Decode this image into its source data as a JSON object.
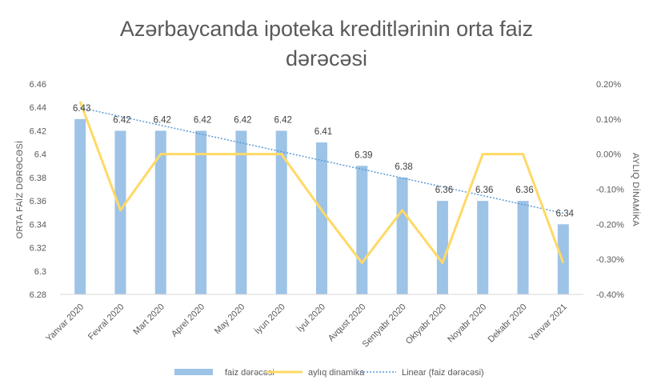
{
  "chart_data": {
    "type": "bar",
    "title_lines": [
      "Azərbaycanda ipoteka kreditlərinin orta faiz",
      "dərəcəsi"
    ],
    "categories": [
      "Yanvar 2020",
      "Fevral 2020",
      "Mart 2020",
      "Aprel 2020",
      "May 2020",
      "İyun 2020",
      "İyul 2020",
      "Avqust 2020",
      "Sentyabr 2020",
      "Oktyabr 2020",
      "Noyabr 2020",
      "Dekabr 2020",
      "Yanvar 2021"
    ],
    "series": [
      {
        "name": "faiz dərəcəsi",
        "type": "bar",
        "axis": "left",
        "color": "#9dc3e6",
        "values": [
          6.43,
          6.42,
          6.42,
          6.42,
          6.42,
          6.42,
          6.41,
          6.39,
          6.38,
          6.36,
          6.36,
          6.36,
          6.34
        ],
        "labels": [
          "6.43",
          "6.42",
          "6.42",
          "6.42",
          "6.42",
          "6.42",
          "6.41",
          "6.39",
          "6.38",
          "6.36",
          "6.36",
          "6.36",
          "6.34"
        ]
      },
      {
        "name": "aylıq dinamika",
        "type": "line",
        "axis": "right",
        "color": "#ffd966",
        "values": [
          0.15,
          -0.16,
          0.0,
          0.0,
          0.0,
          0.0,
          -0.16,
          -0.31,
          -0.16,
          -0.31,
          0.0,
          0.0,
          -0.31
        ]
      },
      {
        "name": "Linear (faiz dərəcəsi)",
        "type": "trendline",
        "axis": "left",
        "color": "#5b9bd5",
        "of": "faiz dərəcəsi"
      }
    ],
    "ylabel": "ORTA FAİZ DƏRƏCƏSİ",
    "y2label": "AYLIQ DİNAMİKA",
    "ylim": [
      6.28,
      6.46
    ],
    "yticks": [
      "6.28",
      "6.3",
      "6.32",
      "6.34",
      "6.36",
      "6.38",
      "6.4",
      "6.42",
      "6.44",
      "6.46"
    ],
    "y2lim": [
      -0.4,
      0.2
    ],
    "y2ticks": [
      "-0.40%",
      "-0.30%",
      "-0.20%",
      "-0.10%",
      "0.00%",
      "0.10%",
      "0.20%"
    ],
    "grid": false,
    "legend_position": "bottom"
  }
}
